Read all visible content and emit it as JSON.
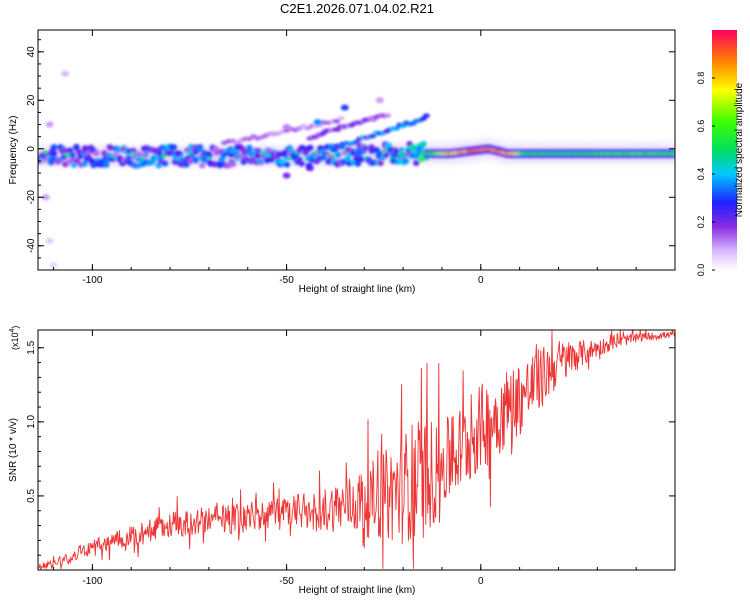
{
  "figure_title": "C2E1.2026.071.04.02.R21",
  "colors": {
    "snr_line": "#ee3333",
    "axis": "#000000",
    "background": "#ffffff"
  },
  "chart_data": [
    {
      "type": "heatmap",
      "name": "spectrogram",
      "title": "C2E1.2026.071.04.02.R21",
      "xlabel": "Height of straight line (km)",
      "ylabel": "Frequency (Hz)",
      "xlim": [
        -114,
        50
      ],
      "ylim": [
        -50,
        49
      ],
      "xticks": [
        -100,
        -50,
        0
      ],
      "xtick_labels": [
        "-100",
        "-50",
        "0"
      ],
      "yticks": [
        -40,
        -20,
        0,
        20,
        40
      ],
      "ytick_labels": [
        "-40",
        "-20",
        "0",
        "20",
        "40"
      ],
      "grid": false,
      "ridge": [
        {
          "x": -113,
          "y": -3,
          "a": 0.25
        },
        {
          "x": -108,
          "y": -3,
          "a": 0.35
        },
        {
          "x": -100,
          "y": -3,
          "a": 0.3
        },
        {
          "x": -90,
          "y": -3,
          "a": 0.35
        },
        {
          "x": -80,
          "y": -3,
          "a": 0.35
        },
        {
          "x": -70,
          "y": -3,
          "a": 0.35
        },
        {
          "x": -60,
          "y": -3,
          "a": 0.35
        },
        {
          "x": -50,
          "y": -3,
          "a": 0.35
        },
        {
          "x": -40,
          "y": -3,
          "a": 0.35
        },
        {
          "x": -30,
          "y": -2,
          "a": 0.35
        },
        {
          "x": -20,
          "y": -2,
          "a": 0.4
        },
        {
          "x": -14,
          "y": -2,
          "a": 0.55
        },
        {
          "x": -8,
          "y": -2,
          "a": 0.85
        },
        {
          "x": -3,
          "y": -1,
          "a": 0.9
        },
        {
          "x": 2,
          "y": 0,
          "a": 0.95
        },
        {
          "x": 7,
          "y": -2,
          "a": 0.9
        },
        {
          "x": 12,
          "y": -2,
          "a": 0.6
        },
        {
          "x": 20,
          "y": -2,
          "a": 0.55
        },
        {
          "x": 30,
          "y": -2,
          "a": 0.6
        },
        {
          "x": 40,
          "y": -2,
          "a": 0.65
        },
        {
          "x": 49,
          "y": -2,
          "a": 0.6
        }
      ],
      "streaks": [
        {
          "x1": -38,
          "y1": 0,
          "x2": -14,
          "y2": 13,
          "a": 0.3
        },
        {
          "x1": -44,
          "y1": 5,
          "x2": -24,
          "y2": 14,
          "a": 0.18
        },
        {
          "x1": -66,
          "y1": 2,
          "x2": -36,
          "y2": 12,
          "a": 0.12
        }
      ],
      "hotspots": [
        {
          "x": -107,
          "y": 31,
          "a": 0.08
        },
        {
          "x": -111,
          "y": 10,
          "a": 0.1
        },
        {
          "x": -112,
          "y": -20,
          "a": 0.1
        },
        {
          "x": -111,
          "y": -38,
          "a": 0.06
        },
        {
          "x": -110,
          "y": -48,
          "a": 0.05
        },
        {
          "x": -42,
          "y": 11,
          "a": 0.35
        },
        {
          "x": -35,
          "y": 17,
          "a": 0.3
        },
        {
          "x": -26,
          "y": 20,
          "a": 0.1
        },
        {
          "x": -50,
          "y": 9,
          "a": 0.12
        },
        {
          "x": -50,
          "y": -11,
          "a": 0.2
        },
        {
          "x": -44,
          "y": -8,
          "a": 0.2
        }
      ]
    },
    {
      "type": "line",
      "name": "snr",
      "xlabel": "Height of straight line (km)",
      "ylabel": "SNR (10 * v/v)",
      "yscale_label": "(x10",
      "yscale_exponent": "4",
      "xlim": [
        -114,
        50
      ],
      "ylim": [
        0,
        1.62
      ],
      "xticks": [
        -100,
        -50,
        0
      ],
      "xtick_labels": [
        "-100",
        "-50",
        "0"
      ],
      "yticks": [
        0.5,
        1.0,
        1.5
      ],
      "ytick_labels": [
        "0.5",
        "1.0",
        "1.5"
      ],
      "grid": false,
      "series": [
        {
          "name": "SNR",
          "envelope": {
            "x": [
              -114,
              -110,
              -105,
              -100,
              -95,
              -90,
              -85,
              -80,
              -75,
              -70,
              -65,
              -60,
              -55,
              -50,
              -45,
              -40,
              -35,
              -30,
              -25,
              -20,
              -18,
              -15,
              -12,
              -10,
              -5,
              0,
              5,
              10,
              15,
              20,
              25,
              30,
              35,
              40,
              45,
              50
            ],
            "y": [
              0.02,
              0.05,
              0.1,
              0.15,
              0.2,
              0.23,
              0.27,
              0.3,
              0.32,
              0.34,
              0.34,
              0.36,
              0.38,
              0.38,
              0.39,
              0.41,
              0.44,
              0.46,
              0.5,
              0.55,
              0.6,
              0.62,
              0.66,
              0.7,
              0.82,
              0.96,
              1.06,
              1.16,
              1.28,
              1.4,
              1.45,
              1.5,
              1.54,
              1.57,
              1.58,
              1.59
            ]
          },
          "noise": {
            "x": [
              -114,
              -105,
              -95,
              -85,
              -75,
              -65,
              -55,
              -45,
              -35,
              -25,
              -20,
              -15,
              -12,
              -10,
              -5,
              0,
              5,
              10,
              15,
              20,
              25,
              30,
              40,
              50
            ],
            "y": [
              0.02,
              0.04,
              0.06,
              0.08,
              0.09,
              0.1,
              0.11,
              0.13,
              0.18,
              0.3,
              0.38,
              0.42,
              0.36,
              0.3,
              0.3,
              0.3,
              0.28,
              0.26,
              0.22,
              0.16,
              0.1,
              0.06,
              0.03,
              0.02
            ]
          }
        }
      ]
    }
  ],
  "colorbar": {
    "label": "Normalized spectral amplitude",
    "range": [
      0,
      1
    ],
    "ticks": [
      0.0,
      0.2,
      0.4,
      0.6,
      0.8
    ],
    "tick_labels": [
      "0.0",
      "0.2",
      "0.4",
      "0.6",
      "0.8"
    ]
  }
}
